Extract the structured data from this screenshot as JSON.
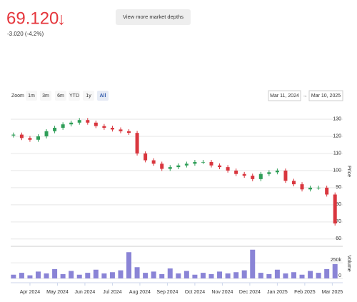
{
  "header": {
    "price": "69.120",
    "arrow": "↓",
    "change": "-3.020 (-4.2%)",
    "button": "View more market depths"
  },
  "toolbar": {
    "zoom_label": "Zoom",
    "buttons": [
      "1m",
      "3m",
      "6m",
      "YTD",
      "1y",
      "All"
    ],
    "active": 5,
    "from": "Mar 11, 2024",
    "arrow": "→",
    "to": "Mar 10, 2025"
  },
  "chart_data": {
    "type": "candlestick",
    "x": [
      0.4,
      0.7,
      1.0,
      1.3,
      1.6,
      1.9,
      2.2,
      2.5,
      2.8,
      3.1,
      3.4,
      3.7,
      4.0,
      4.3,
      4.6,
      4.9,
      5.2,
      5.5,
      5.8,
      6.1,
      6.4,
      6.7,
      7.0,
      7.3,
      7.6,
      7.9,
      8.2,
      8.5,
      8.8,
      9.1,
      9.4,
      9.7,
      10.0,
      10.3,
      10.6,
      10.9,
      11.2,
      11.5,
      11.8,
      12.1
    ],
    "xlim": [
      0.3,
      12.38
    ],
    "xticks": [
      {
        "value": 1,
        "label": "Apr 2024"
      },
      {
        "value": 2,
        "label": "May 2024"
      },
      {
        "value": 3,
        "label": "Jun 2024"
      },
      {
        "value": 4,
        "label": "Jul 2024"
      },
      {
        "value": 5,
        "label": "Aug 2024"
      },
      {
        "value": 6,
        "label": "Sep 2024"
      },
      {
        "value": 7,
        "label": "Oct 2024"
      },
      {
        "value": 8,
        "label": "Nov 2024"
      },
      {
        "value": 9,
        "label": "Dec 2024"
      },
      {
        "value": 10,
        "label": "Jan 2025"
      },
      {
        "value": 11,
        "label": "Feb 2025"
      },
      {
        "value": 12,
        "label": "Mar 2025"
      }
    ],
    "series": [
      {
        "name": "Price",
        "up_color": "#2f9e58",
        "down_color": "#d9363e",
        "open": [
          120.5,
          121,
          119,
          118,
          120,
          123,
          125,
          127,
          128,
          129.5,
          128,
          126,
          125,
          124,
          123,
          122,
          110,
          106,
          104,
          101,
          102,
          103,
          104,
          105,
          105,
          103,
          102,
          100,
          98,
          97,
          95,
          98,
          99,
          100,
          94,
          92,
          89,
          90,
          90,
          86
        ],
        "high": [
          122.2,
          122.2,
          120.2,
          121.2,
          124.2,
          126.2,
          128.2,
          129.2,
          130.7,
          130.7,
          129.2,
          127.2,
          126.2,
          125.2,
          124.2,
          123.2,
          111.2,
          107.2,
          105.2,
          103.2,
          104.2,
          105.2,
          106.2,
          106.2,
          106.2,
          104.2,
          103.2,
          101.2,
          99.2,
          98.2,
          99.2,
          100.2,
          101.2,
          101.2,
          95.2,
          93.2,
          91.2,
          91.2,
          91.2,
          87.2
        ],
        "low": [
          119.3,
          117.8,
          116.8,
          116.8,
          118.8,
          121.8,
          123.8,
          125.8,
          126.8,
          126.8,
          124.8,
          123.8,
          122.8,
          121.8,
          120.8,
          108.8,
          104.8,
          102.8,
          99.8,
          99.8,
          100.8,
          101.8,
          102.8,
          103.8,
          101.8,
          100.8,
          98.8,
          96.8,
          95.8,
          93.8,
          93.8,
          96.8,
          97.8,
          92.8,
          90.8,
          87.8,
          87.8,
          88.8,
          84.8,
          67.9
        ],
        "close": [
          121,
          119,
          118,
          120,
          123,
          125,
          127,
          128,
          129.5,
          128,
          126,
          125,
          124,
          123,
          122,
          110,
          106,
          104,
          101,
          102,
          103,
          104,
          105,
          105,
          103,
          102,
          100,
          98,
          97,
          95,
          98,
          99,
          100,
          94,
          92,
          89,
          90,
          90,
          86,
          69.12
        ]
      },
      {
        "name": "Volume",
        "axis": "y2",
        "color": "#8a84d6",
        "values": [
          60000,
          90000,
          50000,
          110000,
          80000,
          150000,
          70000,
          120000,
          60000,
          90000,
          140000,
          80000,
          100000,
          130000,
          420000,
          180000,
          90000,
          110000,
          70000,
          160000,
          80000,
          120000,
          60000,
          90000,
          70000,
          110000,
          80000,
          100000,
          130000,
          460000,
          90000,
          70000,
          140000,
          80000,
          100000,
          60000,
          120000,
          90000,
          150000,
          230000
        ]
      }
    ],
    "ylim": [
      57,
      135
    ],
    "yticks": [
      60,
      70,
      80,
      90,
      100,
      110,
      120,
      130
    ],
    "y2lim": [
      0,
      480000
    ],
    "y2ticks": [
      0,
      {
        "value": 250000,
        "label": "250k"
      }
    ],
    "grid": true
  }
}
